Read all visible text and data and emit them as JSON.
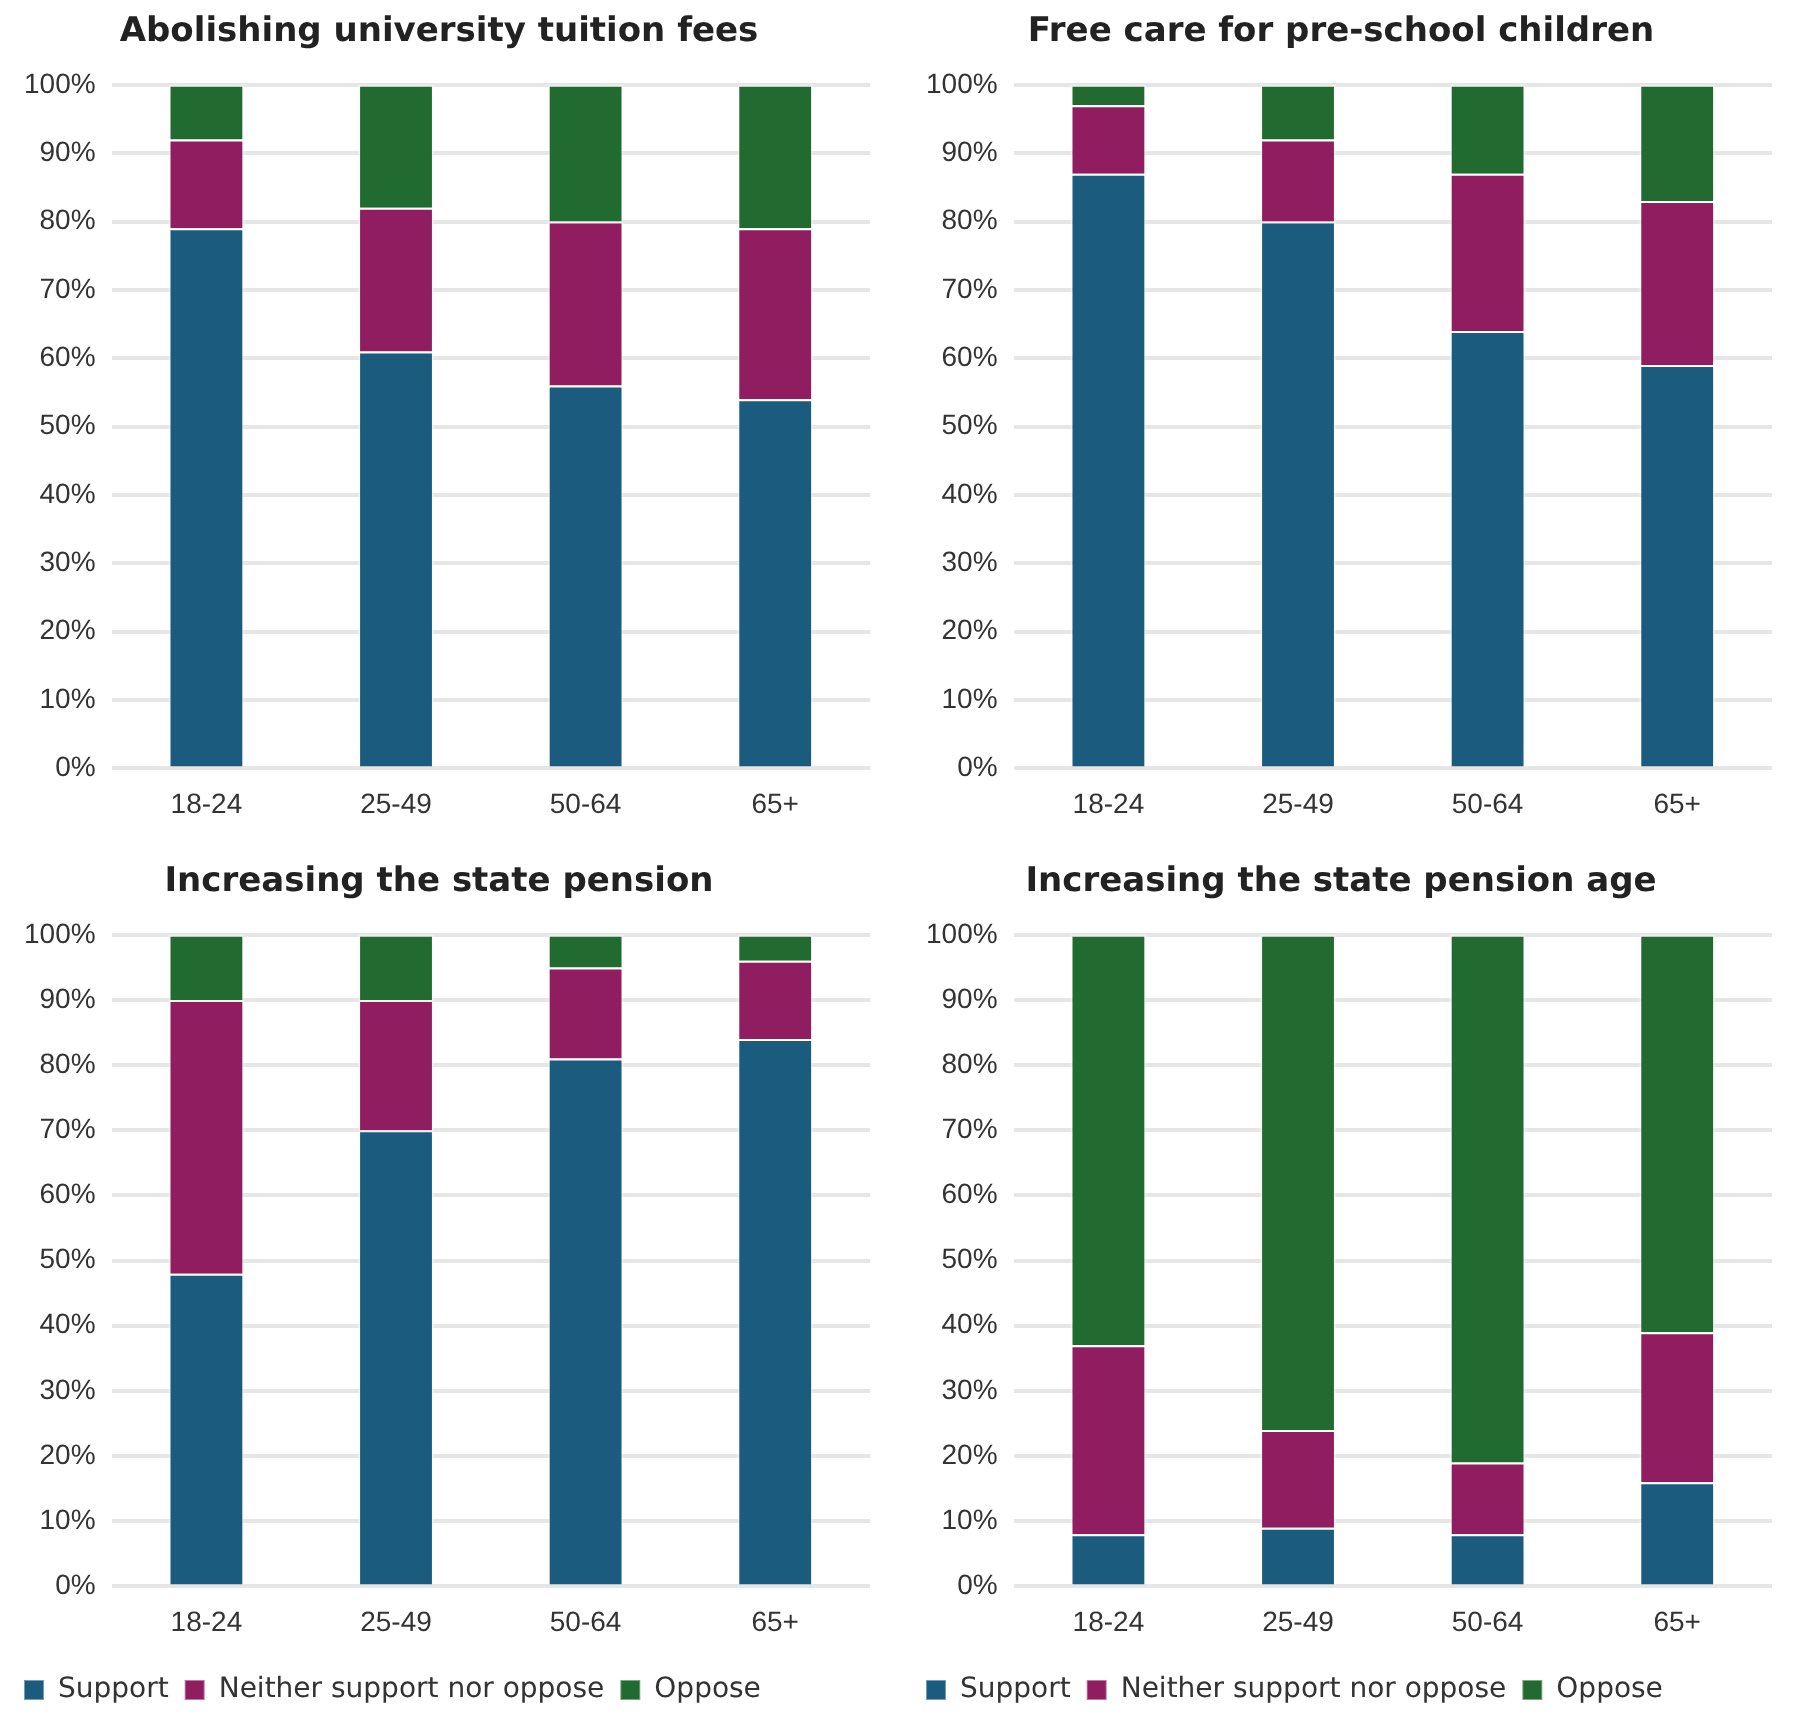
{
  "chart_data": [
    {
      "type": "bar",
      "title": "Abolishing university tuition fees",
      "categories": [
        "18-24",
        "25-49",
        "50-64",
        "65+"
      ],
      "stacked": true,
      "grid": "y",
      "legend": false,
      "ylim": [
        0,
        100
      ],
      "yticks": [
        {
          "value": 0,
          "label": "0%"
        },
        {
          "value": 10,
          "label": "10%"
        },
        {
          "value": 20,
          "label": "20%"
        },
        {
          "value": 30,
          "label": "30%"
        },
        {
          "value": 40,
          "label": "40%"
        },
        {
          "value": 50,
          "label": "50%"
        },
        {
          "value": 60,
          "label": "60%"
        },
        {
          "value": 70,
          "label": "70%"
        },
        {
          "value": 80,
          "label": "80%"
        },
        {
          "value": 90,
          "label": "90%"
        },
        {
          "value": 100,
          "label": "100%"
        }
      ],
      "series": [
        {
          "color": "#1a5b7e",
          "values": [
            79,
            61,
            56,
            54
          ]
        },
        {
          "color": "#8f1d5f",
          "values": [
            13,
            21,
            24,
            25
          ]
        },
        {
          "color": "#226b30",
          "values": [
            8,
            18,
            20,
            21
          ]
        }
      ]
    },
    {
      "type": "bar",
      "title": "Free care for pre-school children",
      "categories": [
        "18-24",
        "25-49",
        "50-64",
        "65+"
      ],
      "stacked": true,
      "grid": "y",
      "legend": false,
      "ylim": [
        0,
        100
      ],
      "yticks": [
        {
          "value": 0,
          "label": "0%"
        },
        {
          "value": 10,
          "label": "10%"
        },
        {
          "value": 20,
          "label": "20%"
        },
        {
          "value": 30,
          "label": "30%"
        },
        {
          "value": 40,
          "label": "40%"
        },
        {
          "value": 50,
          "label": "50%"
        },
        {
          "value": 60,
          "label": "60%"
        },
        {
          "value": 70,
          "label": "70%"
        },
        {
          "value": 80,
          "label": "80%"
        },
        {
          "value": 90,
          "label": "90%"
        },
        {
          "value": 100,
          "label": "100%"
        }
      ],
      "series": [
        {
          "color": "#1a5b7e",
          "values": [
            87,
            80,
            64,
            59
          ]
        },
        {
          "color": "#8f1d5f",
          "values": [
            10,
            12,
            23,
            24
          ]
        },
        {
          "color": "#226b30",
          "values": [
            3,
            8,
            13,
            17
          ]
        }
      ]
    },
    {
      "type": "bar",
      "title": "Increasing the state pension",
      "categories": [
        "18-24",
        "25-49",
        "50-64",
        "65+"
      ],
      "stacked": true,
      "grid": "y",
      "legend": "bottom",
      "ylim": [
        0,
        100
      ],
      "yticks": [
        {
          "value": 0,
          "label": "0%"
        },
        {
          "value": 10,
          "label": "10%"
        },
        {
          "value": 20,
          "label": "20%"
        },
        {
          "value": 30,
          "label": "30%"
        },
        {
          "value": 40,
          "label": "40%"
        },
        {
          "value": 50,
          "label": "50%"
        },
        {
          "value": 60,
          "label": "60%"
        },
        {
          "value": 70,
          "label": "70%"
        },
        {
          "value": 80,
          "label": "80%"
        },
        {
          "value": 90,
          "label": "90%"
        },
        {
          "value": 100,
          "label": "100%"
        }
      ],
      "series": [
        {
          "name": "Support",
          "color": "#1a5b7e",
          "values": [
            48,
            70,
            81,
            84
          ]
        },
        {
          "name": "Neither support nor oppose",
          "color": "#8f1d5f",
          "values": [
            42,
            20,
            14,
            12
          ]
        },
        {
          "name": "Oppose",
          "color": "#226b30",
          "values": [
            10,
            10,
            5,
            4
          ]
        }
      ]
    },
    {
      "type": "bar",
      "title": "Increasing the state pension age",
      "categories": [
        "18-24",
        "25-49",
        "50-64",
        "65+"
      ],
      "stacked": true,
      "grid": "y",
      "legend": "bottom",
      "ylim": [
        0,
        100
      ],
      "yticks": [
        {
          "value": 0,
          "label": "0%"
        },
        {
          "value": 10,
          "label": "10%"
        },
        {
          "value": 20,
          "label": "20%"
        },
        {
          "value": 30,
          "label": "30%"
        },
        {
          "value": 40,
          "label": "40%"
        },
        {
          "value": 50,
          "label": "50%"
        },
        {
          "value": 60,
          "label": "60%"
        },
        {
          "value": 70,
          "label": "70%"
        },
        {
          "value": 80,
          "label": "80%"
        },
        {
          "value": 90,
          "label": "90%"
        },
        {
          "value": 100,
          "label": "100%"
        }
      ],
      "series": [
        {
          "name": "Support",
          "color": "#1a5b7e",
          "values": [
            8,
            9,
            8,
            16
          ]
        },
        {
          "name": "Neither support nor oppose",
          "color": "#8f1d5f",
          "values": [
            29,
            15,
            11,
            23
          ]
        },
        {
          "name": "Oppose",
          "color": "#226b30",
          "values": [
            63,
            76,
            81,
            61
          ]
        }
      ]
    }
  ]
}
